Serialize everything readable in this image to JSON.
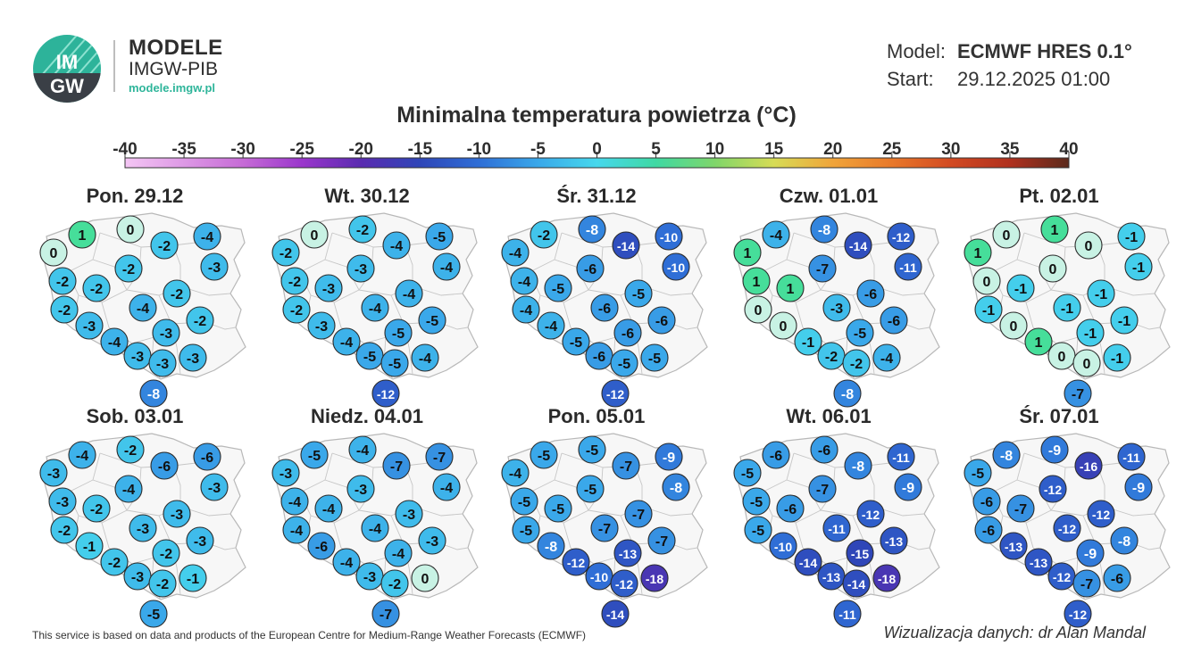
{
  "brand": {
    "logo_text_top": "IM",
    "logo_text_bottom": "GW",
    "title": "MODELE",
    "subtitle": "IMGW-PIB",
    "url": "modele.imgw.pl"
  },
  "meta": {
    "model_label": "Model:",
    "model_value": "ECMWF HRES 0.1°",
    "start_label": "Start:",
    "start_value": "29.12.2025 01:00"
  },
  "title": "Minimalna temperatura powietrza (°C)",
  "scale": {
    "min": -40,
    "max": 40,
    "ticks": [
      "-40",
      "-35",
      "-30",
      "-25",
      "-20",
      "-15",
      "-10",
      "-5",
      "0",
      "5",
      "10",
      "15",
      "20",
      "25",
      "30",
      "35",
      "40"
    ],
    "colors": {
      "c_m40": "#f4c6f4",
      "c_m30": "#c66bd6",
      "c_m25": "#9a36cc",
      "c_m20": "#5a2bb0",
      "c_m15": "#2f46b8",
      "c_m10": "#2f6ed6",
      "c_m5": "#3aa8ea",
      "c_0": "#47d8ec",
      "c_5": "#3fd9a3",
      "c_10": "#7fd66a",
      "c_15": "#d7dc55",
      "c_20": "#f0a43a",
      "c_25": "#e8782a",
      "c_30": "#d24a22",
      "c_35": "#b0301e",
      "c_40": "#5b2a1c"
    }
  },
  "map_data": {
    "panels": [
      {
        "date": "Pon. 29.12",
        "values": [
          0,
          1,
          0,
          -4,
          -2,
          -3,
          -2,
          -2,
          -2,
          -2,
          -2,
          -4,
          -2,
          -3,
          -4,
          -3,
          -3,
          -3,
          -3,
          -8
        ]
      },
      {
        "date": "Wt. 30.12",
        "values": [
          -2,
          0,
          -2,
          -5,
          -4,
          -4,
          -2,
          -3,
          -2,
          -4,
          -3,
          -4,
          -5,
          -3,
          -4,
          -5,
          -5,
          -5,
          -4,
          -12
        ]
      },
      {
        "date": "Śr. 31.12",
        "values": [
          -4,
          -2,
          -8,
          -10,
          -14,
          -10,
          -4,
          -6,
          -4,
          -5,
          -5,
          -6,
          -6,
          -4,
          -5,
          -6,
          -6,
          -5,
          -5,
          -12
        ]
      },
      {
        "date": "Czw. 01.01",
        "values": [
          1,
          -4,
          -8,
          -12,
          -14,
          -11,
          1,
          -7,
          0,
          -6,
          1,
          -3,
          -6,
          0,
          -1,
          -5,
          -2,
          -2,
          -4,
          -8
        ]
      },
      {
        "date": "Pt. 02.01",
        "values": [
          1,
          0,
          1,
          -1,
          0,
          -1,
          0,
          0,
          -1,
          -1,
          -1,
          -1,
          -1,
          0,
          1,
          -1,
          0,
          0,
          -1,
          -7
        ]
      },
      {
        "date": "Sob. 03.01",
        "values": [
          -3,
          -4,
          -2,
          -6,
          -6,
          -3,
          -3,
          -4,
          -2,
          -3,
          -2,
          -3,
          -3,
          -1,
          -2,
          -2,
          -3,
          -2,
          -1,
          -5
        ]
      },
      {
        "date": "Niedz. 04.01",
        "values": [
          -3,
          -5,
          -4,
          -7,
          -7,
          -4,
          -4,
          -3,
          -4,
          -3,
          -4,
          -4,
          -3,
          -6,
          -4,
          -4,
          -3,
          -2,
          0,
          -7
        ]
      },
      {
        "date": "Pon. 05.01",
        "values": [
          -4,
          -5,
          -5,
          -9,
          -7,
          -8,
          -5,
          -5,
          -5,
          -7,
          -5,
          -7,
          -7,
          -8,
          -12,
          -13,
          -10,
          -12,
          -18,
          -14
        ]
      },
      {
        "date": "Wt. 06.01",
        "values": [
          -5,
          -6,
          -6,
          -11,
          -8,
          -9,
          -5,
          -7,
          -5,
          -12,
          -6,
          -11,
          -13,
          -10,
          -14,
          -15,
          -13,
          -14,
          -18,
          -11
        ]
      },
      {
        "date": "Śr. 07.01",
        "values": [
          -5,
          -8,
          -9,
          -11,
          -16,
          -9,
          -6,
          -12,
          -6,
          -12,
          -7,
          -12,
          -8,
          -13,
          -13,
          -9,
          -12,
          -7,
          -6,
          -12
        ]
      }
    ]
  },
  "footer": {
    "source": "This service is based on data and products of the European Centre for Medium-Range Weather Forecasts (ECMWF)",
    "credit": "Wizualizacja danych: dr Alan Mandal"
  }
}
